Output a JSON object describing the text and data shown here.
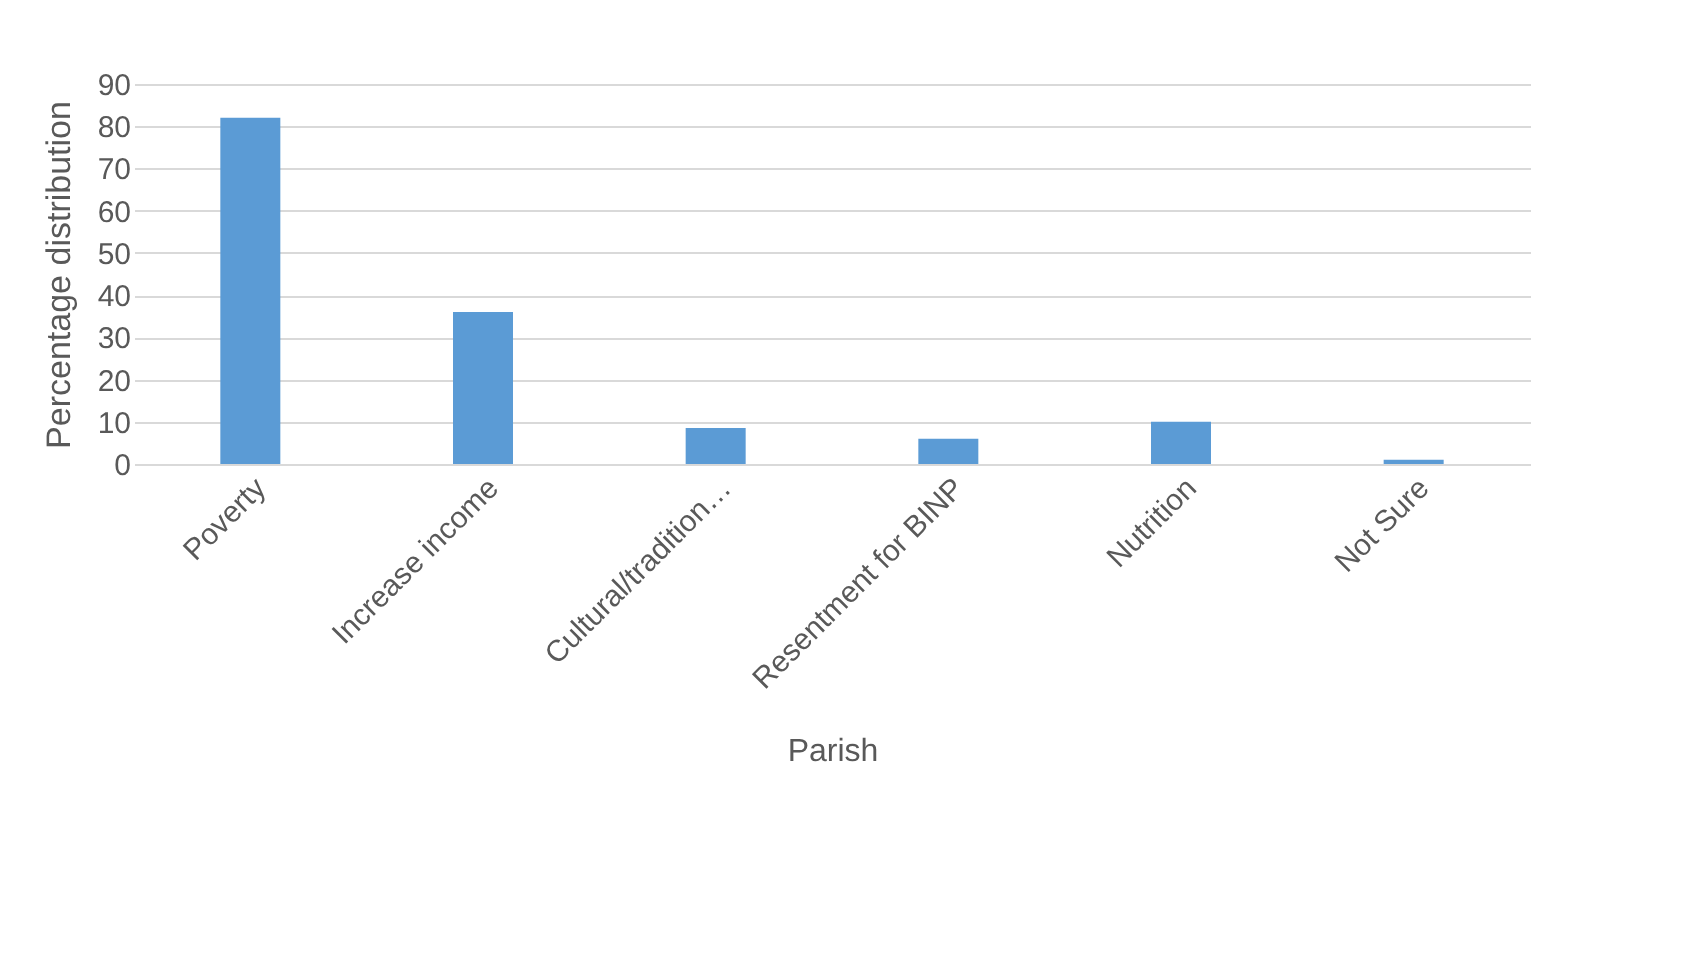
{
  "chart_data": {
    "type": "bar",
    "xlabel": "Parish",
    "ylabel": "Percentage distribution",
    "categories": [
      "Poverty",
      "Increase income",
      "Cultural/tradition…",
      "Resentment for BINP",
      "Nutrition",
      "Not Sure"
    ],
    "values": [
      82,
      36,
      8.5,
      6,
      10,
      1
    ],
    "color": "#5b9bd5",
    "ylim": [
      0,
      90
    ],
    "yticks": [
      0,
      10,
      20,
      30,
      40,
      50,
      60,
      70,
      80,
      90
    ],
    "grid": "y"
  }
}
